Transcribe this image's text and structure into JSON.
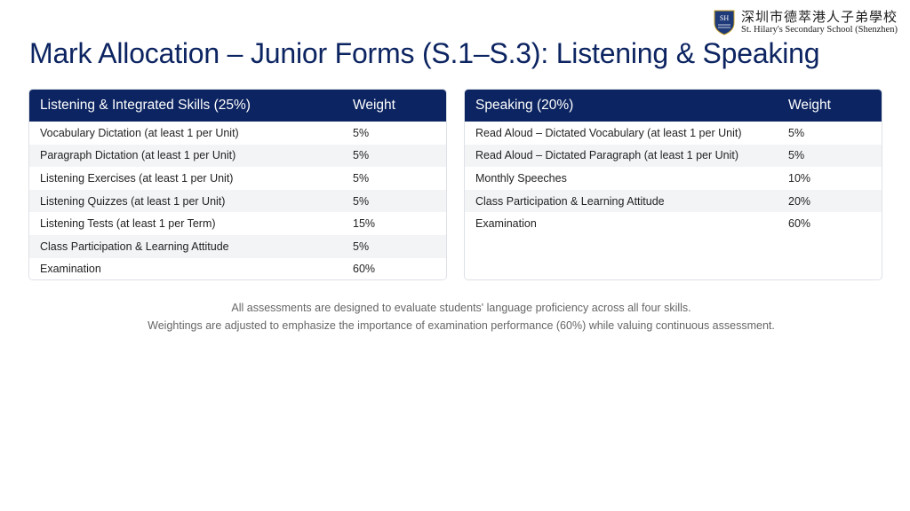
{
  "logo": {
    "chinese_name": "深圳市德萃港人子弟學校",
    "english_name": "St. Hilary's Secondary School (Shenzhen)",
    "crest_letters": "SH",
    "crest_color": "#1f3a78"
  },
  "title": "Mark Allocation – Junior Forms (S.1–S.3): Listening & Speaking",
  "colors": {
    "header_bg": "#0c2461",
    "title": "#0c2461",
    "stripe": "#f3f4f6"
  },
  "listening_table": {
    "header": "Listening & Integrated Skills (25%)",
    "weight_header": "Weight",
    "rows": [
      {
        "item": "Vocabulary Dictation (at least 1 per Unit)",
        "weight": "5%"
      },
      {
        "item": "Paragraph Dictation (at least 1 per Unit)",
        "weight": "5%"
      },
      {
        "item": "Listening Exercises (at least 1 per Unit)",
        "weight": "5%"
      },
      {
        "item": "Listening Quizzes (at least 1 per Unit)",
        "weight": "5%"
      },
      {
        "item": "Listening Tests (at least 1 per Term)",
        "weight": "15%"
      },
      {
        "item": "Class Participation & Learning Attitude",
        "weight": "5%"
      },
      {
        "item": "Examination",
        "weight": "60%"
      }
    ]
  },
  "speaking_table": {
    "header": "Speaking (20%)",
    "weight_header": "Weight",
    "rows": [
      {
        "item": "Read Aloud – Dictated Vocabulary (at least 1 per Unit)",
        "weight": "5%"
      },
      {
        "item": "Read Aloud – Dictated Paragraph (at least 1 per Unit)",
        "weight": "5%"
      },
      {
        "item": "Monthly Speeches",
        "weight": "10%"
      },
      {
        "item": "Class Participation & Learning Attitude",
        "weight": "20%"
      },
      {
        "item": "Examination",
        "weight": "60%"
      }
    ]
  },
  "footnote": {
    "line1": "All assessments are designed to evaluate students' language proficiency across all four skills.",
    "line2": "Weightings are adjusted to emphasize the importance of examination performance (60%) while valuing continuous assessment."
  }
}
